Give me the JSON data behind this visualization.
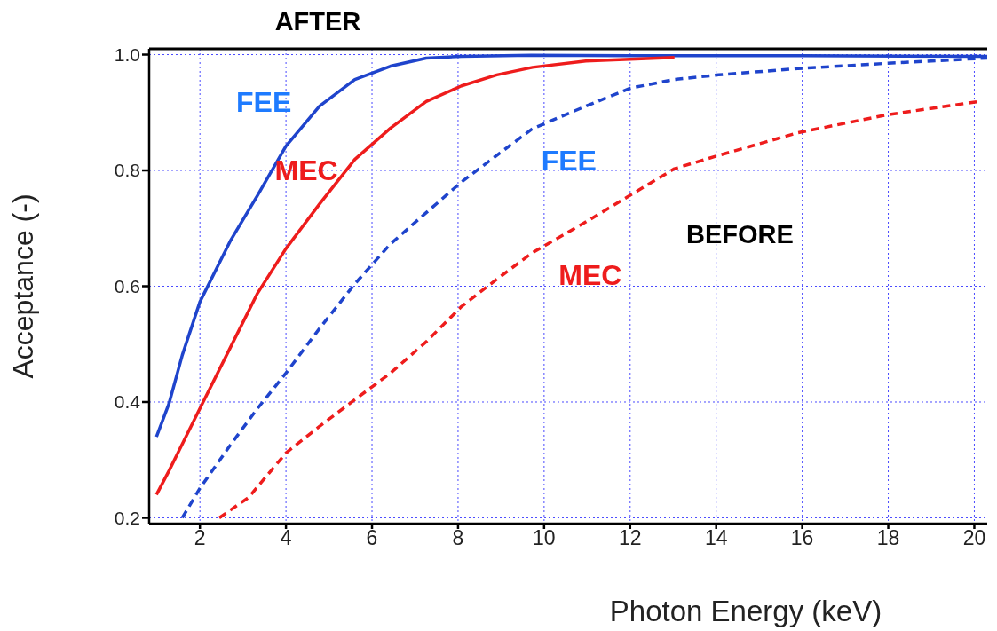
{
  "chart_data": {
    "type": "line",
    "title": "AFTER",
    "xlabel": "Photon Energy (keV)",
    "ylabel": "Acceptance (-)",
    "xlim": [
      0.82,
      20.3
    ],
    "ylim": [
      0.19,
      1.01
    ],
    "xticks": [
      2,
      4,
      6,
      8,
      10,
      12,
      14,
      16,
      18,
      20
    ],
    "yticks": [
      0.2,
      0.4,
      0.6,
      0.8,
      {
        "value": 1,
        "label": "1.0"
      }
    ],
    "grid": true,
    "marker": "none",
    "series": [
      {
        "name": "FEE",
        "color": "#1f44cc",
        "line_style": "solid",
        "x": [
          0.99,
          1.28,
          1.59,
          2,
          2.72,
          3.34,
          4,
          4.78,
          5.6,
          6.43,
          7.26,
          8.08,
          9.7,
          12,
          16,
          20.3
        ],
        "values": [
          0.34,
          0.397,
          0.481,
          0.573,
          0.68,
          0.757,
          0.842,
          0.911,
          0.957,
          0.98,
          0.994,
          0.997,
          0.999,
          0.998,
          0.998,
          0.997
        ]
      },
      {
        "name": "MEC",
        "color": "#ee1c1c",
        "line_style": "solid",
        "x": [
          0.99,
          1.28,
          2,
          2.72,
          3.34,
          4,
          4.78,
          5.6,
          6.43,
          7.26,
          8.08,
          8.9,
          9.73,
          10.97,
          13.03
        ],
        "values": [
          0.24,
          0.281,
          0.389,
          0.496,
          0.588,
          0.665,
          0.742,
          0.819,
          0.873,
          0.919,
          0.946,
          0.965,
          0.978,
          0.989,
          0.995
        ]
      },
      {
        "name": "FEE",
        "color": "#1f44cc",
        "line_style": "dashed",
        "x": [
          1.59,
          2,
          2.72,
          3.34,
          4,
          4.78,
          5.6,
          6.43,
          7.26,
          8.08,
          8.9,
          9.73,
          10.97,
          12,
          13.03,
          14.06,
          15.9,
          17.97,
          20.3
        ],
        "values": [
          0.2,
          0.251,
          0.327,
          0.389,
          0.45,
          0.527,
          0.604,
          0.673,
          0.727,
          0.78,
          0.826,
          0.872,
          0.911,
          0.942,
          0.957,
          0.965,
          0.976,
          0.985,
          0.994
        ]
      },
      {
        "name": "MEC",
        "color": "#ee1c1c",
        "line_style": "dashed",
        "x": [
          2.45,
          3.13,
          4,
          4.78,
          5.6,
          6.43,
          7.26,
          8.08,
          8.9,
          9.73,
          10.97,
          12,
          13.03,
          14.06,
          15.9,
          17.97,
          20.1
        ],
        "values": [
          0.2,
          0.235,
          0.312,
          0.358,
          0.404,
          0.45,
          0.504,
          0.565,
          0.612,
          0.658,
          0.711,
          0.757,
          0.803,
          0.826,
          0.865,
          0.896,
          0.919
        ]
      }
    ],
    "annotations": [
      "BEFORE"
    ]
  }
}
